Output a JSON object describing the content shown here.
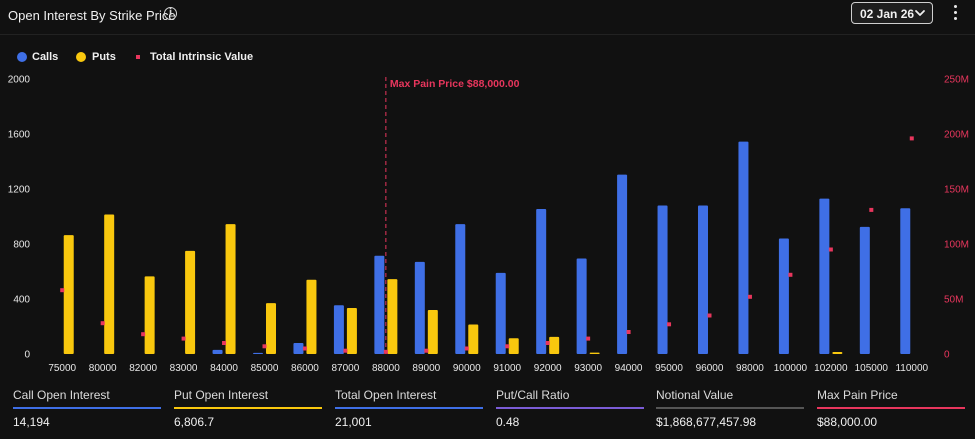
{
  "header": {
    "title": "Open Interest By Strike Price",
    "info_icon": "info-icon",
    "date_value": "02 Jan 26",
    "chevron_icon": "chevron-down-icon",
    "menu_icon": "kebab-menu-icon"
  },
  "legend": {
    "calls": {
      "label": "Calls",
      "color": "#3f6fe6"
    },
    "puts": {
      "label": "Puts",
      "color": "#f9c80e"
    },
    "intrinsic": {
      "label": "Total Intrinsic Value",
      "color": "#e8365d"
    }
  },
  "chart_data": {
    "type": "bar",
    "categories": [
      "75000",
      "80000",
      "82000",
      "83000",
      "84000",
      "85000",
      "86000",
      "87000",
      "88000",
      "89000",
      "90000",
      "91000",
      "92000",
      "93000",
      "94000",
      "95000",
      "96000",
      "98000",
      "100000",
      "102000",
      "105000",
      "110000"
    ],
    "series": [
      {
        "name": "Calls",
        "axis": "left",
        "color": "#3f6fe6",
        "values": [
          0,
          0,
          0,
          0,
          30,
          8,
          80,
          355,
          715,
          670,
          945,
          590,
          1055,
          695,
          1305,
          1080,
          1080,
          1545,
          840,
          1130,
          925,
          1060
        ]
      },
      {
        "name": "Puts",
        "axis": "left",
        "color": "#f9c80e",
        "values": [
          865,
          1015,
          565,
          750,
          945,
          370,
          540,
          335,
          545,
          320,
          215,
          115,
          125,
          10,
          0,
          0,
          0,
          0,
          0,
          15,
          0,
          0
        ]
      },
      {
        "name": "Total Intrinsic Value",
        "axis": "right",
        "type": "scatter",
        "color": "#e8365d",
        "values": [
          58,
          28,
          18,
          14,
          10,
          7,
          5,
          3,
          2,
          3,
          5,
          7,
          10,
          14,
          20,
          27,
          35,
          52,
          72,
          95,
          131,
          196
        ]
      }
    ],
    "yleft": {
      "ticks": [
        "0",
        "400",
        "800",
        "1200",
        "1600",
        "2000"
      ],
      "range": [
        0,
        2000
      ]
    },
    "yright": {
      "ticks": [
        "0",
        "50M",
        "100M",
        "150M",
        "200M",
        "250M"
      ],
      "range": [
        0,
        250
      ]
    },
    "max_pain": {
      "label": "Max Pain Price $88,000.00",
      "category": "88000"
    },
    "legend_position": "top-left",
    "grid": false
  },
  "stats": [
    {
      "label": "Call Open Interest",
      "value": "14,194",
      "color": "#3f6fe6"
    },
    {
      "label": "Put Open Interest",
      "value": "6,806.7",
      "color": "#f9c80e"
    },
    {
      "label": "Total Open Interest",
      "value": "21,001",
      "color": "#3f6fe6"
    },
    {
      "label": "Put/Call Ratio",
      "value": "0.48",
      "color": "#7b5cd6"
    },
    {
      "label": "Notional Value",
      "value": "$1,868,677,457.98",
      "color": "#555555"
    },
    {
      "label": "Max Pain Price",
      "value": "$88,000.00",
      "color": "#e8365d"
    }
  ]
}
